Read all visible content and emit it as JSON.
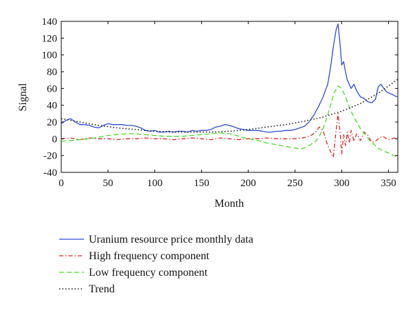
{
  "chart_data": {
    "type": "line",
    "title": "",
    "xlabel": "Month",
    "ylabel": "Signal",
    "xlim": [
      0,
      360
    ],
    "ylim": [
      -40,
      140
    ],
    "xticks": [
      0,
      50,
      100,
      150,
      200,
      250,
      300,
      350
    ],
    "yticks": [
      -40,
      -20,
      0,
      20,
      40,
      60,
      80,
      100,
      120,
      140
    ],
    "grid": false,
    "legend_position": "bottom-outside",
    "series": [
      {
        "name": "Uranium resource price monthly data",
        "color": "#2a4bd7",
        "style": "solid",
        "x": [
          0,
          5,
          10,
          15,
          20,
          25,
          30,
          35,
          40,
          45,
          50,
          55,
          60,
          65,
          70,
          75,
          80,
          85,
          90,
          95,
          100,
          105,
          110,
          115,
          120,
          125,
          130,
          135,
          140,
          145,
          150,
          155,
          160,
          165,
          170,
          175,
          180,
          185,
          190,
          195,
          200,
          205,
          210,
          215,
          220,
          225,
          230,
          235,
          240,
          245,
          250,
          255,
          260,
          265,
          270,
          275,
          280,
          285,
          288,
          291,
          294,
          296,
          298,
          300,
          302,
          304,
          306,
          308,
          310,
          313,
          316,
          320,
          324,
          328,
          332,
          336,
          339,
          342,
          345,
          348,
          351,
          354,
          357,
          360
        ],
        "y": [
          18,
          22,
          24,
          20,
          17,
          17,
          16,
          14,
          13,
          16,
          18,
          17,
          17,
          17,
          16,
          16,
          15,
          13,
          10,
          9,
          10,
          8,
          8,
          9,
          8,
          9,
          9,
          8,
          10,
          9,
          10,
          10,
          11,
          14,
          15,
          17,
          16,
          14,
          12,
          11,
          10,
          10,
          10,
          9,
          8,
          8,
          9,
          9,
          10,
          10,
          11,
          13,
          15,
          20,
          28,
          38,
          50,
          65,
          85,
          110,
          130,
          137,
          115,
          88,
          92,
          80,
          70,
          65,
          60,
          65,
          57,
          50,
          48,
          44,
          43,
          47,
          62,
          65,
          60,
          56,
          54,
          53,
          51,
          50
        ]
      },
      {
        "name": "High frequency component",
        "color": "#e02020",
        "style": "dashdot",
        "x": [
          0,
          10,
          20,
          30,
          40,
          50,
          60,
          70,
          80,
          90,
          100,
          110,
          120,
          130,
          140,
          150,
          160,
          170,
          180,
          190,
          200,
          210,
          220,
          230,
          240,
          250,
          258,
          266,
          272,
          276,
          280,
          284,
          288,
          291,
          294,
          296,
          298,
          300,
          302,
          304,
          306,
          308,
          310,
          313,
          316,
          320,
          324,
          328,
          332,
          336,
          340,
          344,
          348,
          352,
          356,
          360
        ],
        "y": [
          0,
          1,
          -1,
          1,
          0,
          0,
          -1,
          0,
          0,
          1,
          0,
          0,
          -1,
          0,
          1,
          0,
          -1,
          1,
          0,
          -1,
          0,
          0,
          1,
          0,
          0,
          0,
          1,
          3,
          8,
          14,
          10,
          -5,
          -15,
          -22,
          10,
          30,
          10,
          -18,
          5,
          -8,
          8,
          -5,
          10,
          -3,
          6,
          -2,
          8,
          4,
          -4,
          -3,
          1,
          3,
          0,
          -1,
          1,
          0
        ]
      },
      {
        "name": "Low frequency component",
        "color": "#44dd22",
        "style": "dashed",
        "x": [
          0,
          10,
          20,
          30,
          40,
          50,
          60,
          70,
          80,
          90,
          100,
          110,
          120,
          130,
          140,
          150,
          160,
          170,
          180,
          190,
          200,
          210,
          220,
          230,
          240,
          250,
          256,
          262,
          268,
          272,
          276,
          280,
          284,
          288,
          292,
          296,
          300,
          304,
          308,
          312,
          316,
          320,
          325,
          330,
          336,
          340,
          344,
          348,
          352,
          356,
          360
        ],
        "y": [
          -3,
          -2,
          -1,
          0,
          2,
          4,
          5,
          6,
          6,
          5,
          4,
          3,
          3,
          3,
          4,
          5,
          6,
          7,
          6,
          3,
          0,
          -2,
          -5,
          -7,
          -9,
          -11,
          -12,
          -10,
          -6,
          -3,
          3,
          12,
          25,
          40,
          55,
          63,
          60,
          50,
          38,
          28,
          20,
          12,
          5,
          -2,
          -8,
          -12,
          -14,
          -16,
          -18,
          -20,
          -22
        ]
      },
      {
        "name": "Trend",
        "color": "#111111",
        "style": "dotted",
        "x": [
          0,
          20,
          40,
          60,
          80,
          100,
          120,
          140,
          160,
          180,
          200,
          220,
          240,
          260,
          280,
          300,
          320,
          340,
          360
        ],
        "y": [
          24,
          20,
          16,
          13,
          11,
          9,
          8,
          8,
          8,
          9,
          11,
          14,
          17,
          21,
          26,
          33,
          42,
          55,
          71
        ]
      }
    ]
  }
}
